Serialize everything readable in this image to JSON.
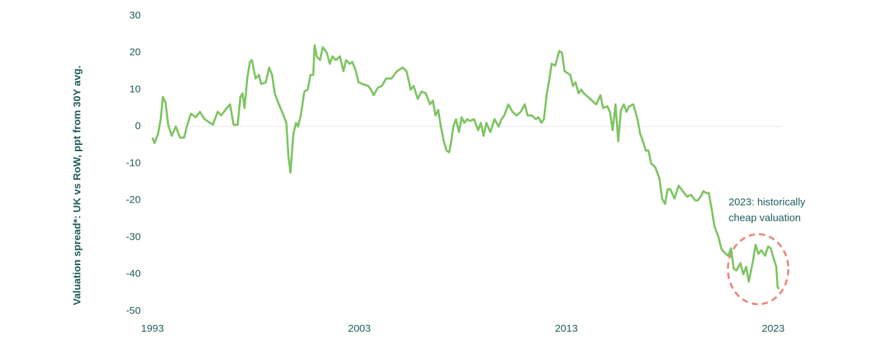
{
  "chart_data": {
    "type": "line",
    "y_label": "Valuation spread*: UK vs RoW, ppt from 30Y avg.",
    "annotation": [
      "2023: historically",
      "cheap valuation"
    ],
    "x": [
      1993.0,
      1993.1,
      1993.27,
      1993.4,
      1993.5,
      1993.63,
      1993.76,
      1993.93,
      1994.13,
      1994.33,
      1994.53,
      1994.66,
      1994.86,
      1995.09,
      1995.29,
      1995.52,
      1995.92,
      1996.15,
      1996.32,
      1996.59,
      1996.75,
      1996.92,
      1997.12,
      1997.25,
      1997.35,
      1997.45,
      1997.58,
      1997.71,
      1997.81,
      1997.98,
      1998.15,
      1998.25,
      1998.48,
      1998.64,
      1998.78,
      1998.91,
      1999.11,
      1999.34,
      1999.47,
      1999.57,
      1999.67,
      1999.81,
      1999.94,
      2000.04,
      2000.17,
      2000.34,
      2000.5,
      2000.64,
      2000.77,
      2000.84,
      2000.94,
      2001.1,
      2001.23,
      2001.43,
      2001.57,
      2001.7,
      2001.86,
      2002.06,
      2002.23,
      2002.36,
      2002.53,
      2002.66,
      2002.83,
      2002.96,
      2003.16,
      2003.43,
      2003.56,
      2003.69,
      2003.89,
      2004.09,
      2004.29,
      2004.55,
      2004.82,
      2005.09,
      2005.28,
      2005.48,
      2005.62,
      2005.82,
      2006.01,
      2006.21,
      2006.41,
      2006.55,
      2006.68,
      2006.81,
      2006.94,
      2007.08,
      2007.21,
      2007.34,
      2007.44,
      2007.54,
      2007.67,
      2007.81,
      2007.94,
      2008.07,
      2008.21,
      2008.34,
      2008.54,
      2008.74,
      2008.87,
      2009.0,
      2009.14,
      2009.33,
      2009.53,
      2009.73,
      2009.87,
      2010.0,
      2010.2,
      2010.4,
      2010.6,
      2010.8,
      2010.99,
      2011.13,
      2011.33,
      2011.53,
      2011.66,
      2011.79,
      2011.92,
      2012.06,
      2012.19,
      2012.29,
      2012.46,
      2012.66,
      2012.79,
      2012.92,
      2013.05,
      2013.19,
      2013.32,
      2013.45,
      2013.59,
      2013.72,
      2013.85,
      2014.05,
      2014.25,
      2014.45,
      2014.65,
      2014.78,
      2014.98,
      2015.11,
      2015.24,
      2015.38,
      2015.51,
      2015.64,
      2015.78,
      2015.91,
      2016.04,
      2016.24,
      2016.44,
      2016.57,
      2016.71,
      2016.84,
      2016.97,
      2017.1,
      2017.3,
      2017.5,
      2017.63,
      2017.77,
      2017.9,
      2018.03,
      2018.23,
      2018.43,
      2018.63,
      2018.83,
      2019.03,
      2019.23,
      2019.36,
      2019.49,
      2019.63,
      2019.76,
      2019.89,
      2020.03,
      2020.16,
      2020.36,
      2020.49,
      2020.62,
      2020.82,
      2020.96,
      2021.09,
      2021.22,
      2021.42,
      2021.55,
      2021.69,
      2021.82,
      2022.02,
      2022.15,
      2022.28,
      2022.42,
      2022.61,
      2022.75,
      2022.88,
      2023.01,
      2023.15,
      2023.21,
      2023.28
    ],
    "values": [
      -3,
      -4.5,
      -2,
      2,
      8,
      6.5,
      0.5,
      -2.5,
      0,
      -3,
      -3,
      0,
      3.5,
      2.5,
      4,
      2,
      0.5,
      4,
      3,
      5,
      6,
      0.5,
      0.5,
      8,
      9,
      5,
      13,
      17.5,
      18,
      13,
      14,
      11.5,
      12,
      16,
      14,
      9,
      6,
      3,
      1,
      -8,
      -12.5,
      -2,
      1,
      0,
      3,
      9.5,
      10,
      14,
      14,
      22,
      19,
      18,
      21.5,
      20,
      17,
      19,
      18,
      19,
      15,
      18,
      17,
      17.5,
      15,
      12,
      11.5,
      11,
      10,
      8.5,
      10.5,
      11,
      13,
      13,
      15,
      16,
      15,
      10,
      11,
      7.5,
      9.5,
      9,
      6,
      7,
      3,
      4.5,
      0,
      -4,
      -6.5,
      -7,
      -4,
      0,
      2,
      -1.5,
      2.5,
      1,
      2,
      1.5,
      2,
      -1,
      1,
      -2.5,
      1,
      -1.5,
      2,
      0,
      2,
      3,
      6,
      4,
      3,
      4,
      6,
      3,
      3,
      2,
      2.5,
      1,
      2,
      9,
      13,
      17,
      16.5,
      20.5,
      20,
      15,
      14.5,
      14,
      11,
      12,
      9,
      10,
      9,
      8,
      7,
      6,
      8.5,
      5,
      5.5,
      4,
      -1,
      6,
      -4,
      4.5,
      6,
      4,
      5.5,
      6,
      2,
      -2,
      -4,
      -6.5,
      -6.5,
      -10,
      -11,
      -14,
      -19.5,
      -21,
      -17,
      -17,
      -19.5,
      -16,
      -17.5,
      -19,
      -18.5,
      -20,
      -20,
      -19,
      -17.5,
      -18,
      -18,
      -22.5,
      -27,
      -30,
      -33,
      -34,
      -35,
      -33,
      -38.5,
      -39,
      -37,
      -40,
      -38,
      -42,
      -36.5,
      -32,
      -34.5,
      -33.5,
      -35,
      -32.5,
      -33,
      -35.5,
      -38,
      -43.5,
      -44
    ],
    "color": "#7dc461",
    "xlim": [
      1993,
      2023.4
    ],
    "xticks": [
      1993,
      2003,
      2013,
      2023
    ],
    "ylim": [
      -50,
      30
    ],
    "yticks": [
      -50,
      -40,
      -30,
      -20,
      -10,
      0,
      10,
      20,
      30
    ],
    "zero_line": true
  }
}
